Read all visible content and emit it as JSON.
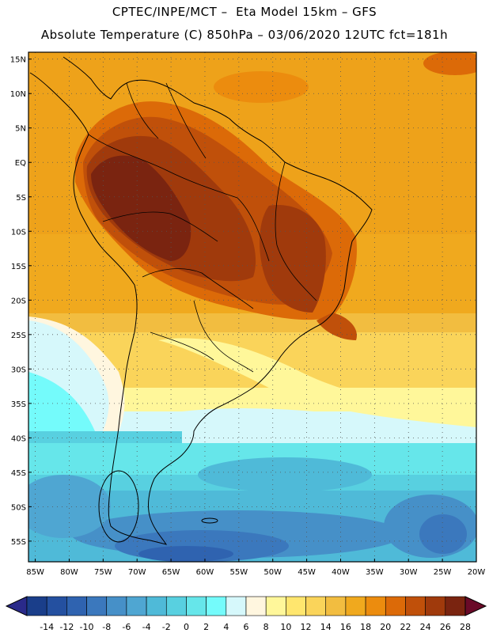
{
  "header": {
    "line1": "CPTEC/INPE/MCT –  Eta Model 15km – GFS",
    "line2": "Absolute Temperature (C) 850hPa – 03/06/2020 12UTC fct=181h"
  },
  "map": {
    "lat_labels": [
      "15N",
      "10N",
      "5N",
      "EQ",
      "5S",
      "10S",
      "15S",
      "20S",
      "25S",
      "30S",
      "35S",
      "40S",
      "45S",
      "50S",
      "55S"
    ],
    "lon_labels": [
      "85W",
      "80W",
      "75W",
      "70W",
      "65W",
      "60W",
      "55W",
      "50W",
      "45W",
      "40W",
      "35W",
      "30W",
      "25W",
      "20W"
    ],
    "lat_values": [
      15,
      10,
      5,
      0,
      -5,
      -10,
      -15,
      -20,
      -25,
      -30,
      -35,
      -40,
      -45,
      -50,
      -55
    ],
    "lon_values": [
      -85,
      -80,
      -75,
      -70,
      -65,
      -60,
      -55,
      -50,
      -45,
      -40,
      -35,
      -30,
      -25,
      -20
    ],
    "lat_range": [
      -58,
      16
    ],
    "lon_range": [
      -86,
      -20
    ]
  },
  "colorbar": {
    "labels": [
      "-14",
      "-12",
      "-10",
      "-8",
      "-6",
      "-4",
      "-2",
      "0",
      "2",
      "4",
      "6",
      "8",
      "10",
      "12",
      "14",
      "16",
      "18",
      "20",
      "22",
      "24",
      "26",
      "28"
    ],
    "colors": [
      "#1a3e8a",
      "#2450a0",
      "#2f63b0",
      "#3b78bd",
      "#4690c8",
      "#4fa6d2",
      "#4fbad8",
      "#58d0e0",
      "#66e6ea",
      "#74fbfb",
      "#d6f8fb",
      "#fff6df",
      "#fff79a",
      "#ffe66e",
      "#fad45a",
      "#f2bd40",
      "#f0a91e",
      "#ec8c0e",
      "#dc6a08",
      "#c0500a",
      "#a03a0c",
      "#7a2410"
    ]
  }
}
